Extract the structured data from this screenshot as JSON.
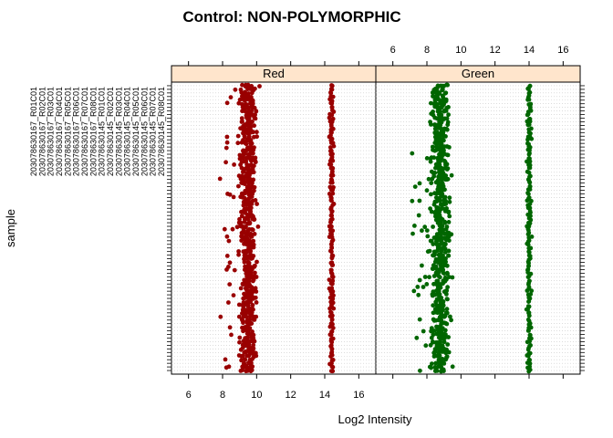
{
  "chart_data": {
    "type": "scatter",
    "title": "Control: NON-POLYMORPHIC",
    "xlabel": "Log2 Intensity",
    "ylabel": "sample",
    "xlim": [
      5,
      17
    ],
    "x_ticks": [
      6,
      8,
      10,
      12,
      14,
      16
    ],
    "grid": true,
    "panels": [
      {
        "name": "Red",
        "color": "#990000",
        "clusters": [
          {
            "center": 9.5,
            "spread": 0.6
          },
          {
            "center": 14.4,
            "spread": 0.15
          }
        ]
      },
      {
        "name": "Green",
        "color": "#006600",
        "clusters": [
          {
            "center": 8.8,
            "spread": 0.7
          },
          {
            "center": 14.0,
            "spread": 0.15
          }
        ]
      }
    ],
    "samples": [
      "203078630167_R01C01",
      "203078630167_R02C01",
      "203078630167_R03C01",
      "203078630167_R04C01",
      "203078630167_R05C01",
      "203078630167_R06C01",
      "203078630167_R07C01",
      "203078630167_R08C01",
      "203078630145_R01C01",
      "203078630145_R02C01",
      "203078630145_R03C01",
      "203078630145_R04C01",
      "203078630145_R05C01",
      "203078630145_R06C01",
      "203078630145_R07C01",
      "203078630145_R08C01"
    ]
  }
}
